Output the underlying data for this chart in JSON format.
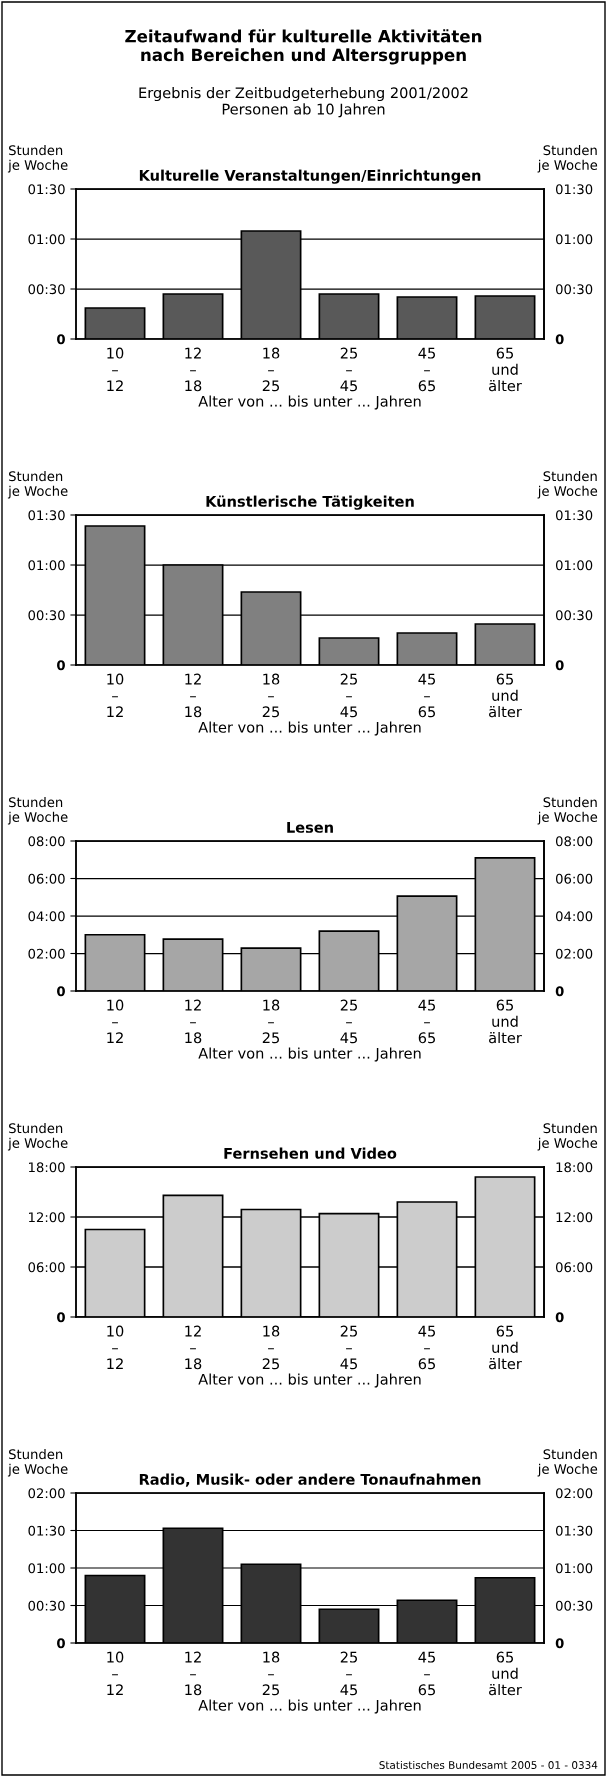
{
  "chart_data": [
    {
      "type": "other",
      "title": "Zeitaufwand für kulturelle Aktivitäten\nnach Bereichen und Altersgruppen",
      "subtitle": "Ergebnis der Zeitbudgeterhebung 2001/2002\nPersonen ab 10 Jahren"
    },
    {
      "type": "bar",
      "title": "Kulturelle Veranstaltungen/Einrichtungen",
      "ylabel": "Stunden\nje Woche",
      "y2label": "Stunden\nje Woche",
      "xlabel": "Alter von ... bis unter ... Jahren",
      "categories": [
        "10\n–\n12",
        "12\n–\n18",
        "18\n–\n25",
        "25\n–\n45",
        "45\n–\n65",
        "65\nund\nälter"
      ],
      "series": [
        {
          "color": "#595959",
          "values": [
            0.31,
            0.45,
            1.08,
            0.45,
            0.42,
            0.43
          ]
        }
      ],
      "ylim": [
        0,
        1.5
      ],
      "yticks": [
        {
          "value": 0,
          "label": "0"
        },
        {
          "value": 0.5,
          "label": "00:30"
        },
        {
          "value": 1,
          "label": "01:00"
        },
        {
          "value": 1.5,
          "label": "01:30"
        }
      ],
      "y2lim": [
        0,
        1.5
      ],
      "y2ticks": [
        {
          "value": 0,
          "label": "0"
        },
        {
          "value": 0.5,
          "label": "00:30"
        },
        {
          "value": 1,
          "label": "01:00"
        },
        {
          "value": 1.5,
          "label": "01:30"
        }
      ],
      "grid": "y",
      "legend": false
    },
    {
      "type": "bar",
      "title": "Künstlerische Tätigkeiten",
      "ylabel": "Stunden\nje Woche",
      "y2label": "Stunden\nje Woche",
      "xlabel": "Alter von ... bis unter ... Jahren",
      "categories": [
        "10\n–\n12",
        "12\n–\n18",
        "18\n–\n25",
        "25\n–\n45",
        "45\n–\n65",
        "65\nund\nälter"
      ],
      "series": [
        {
          "color": "#808080",
          "values": [
            1.39,
            1.0,
            0.73,
            0.27,
            0.32,
            0.41
          ]
        }
      ],
      "ylim": [
        0,
        1.5
      ],
      "yticks": [
        {
          "value": 0,
          "label": "0"
        },
        {
          "value": 0.5,
          "label": "00:30"
        },
        {
          "value": 1,
          "label": "01:00"
        },
        {
          "value": 1.5,
          "label": "01:30"
        }
      ],
      "y2lim": [
        0,
        1.5
      ],
      "y2ticks": [
        {
          "value": 0,
          "label": "0"
        },
        {
          "value": 0.5,
          "label": "00:30"
        },
        {
          "value": 1,
          "label": "01:00"
        },
        {
          "value": 1.5,
          "label": "01:30"
        }
      ],
      "grid": "y",
      "legend": false
    },
    {
      "type": "bar",
      "title": "Lesen",
      "ylabel": "Stunden\nje Woche",
      "y2label": "Stunden\nje Woche",
      "xlabel": "Alter von ... bis unter ... Jahren",
      "categories": [
        "10\n–\n12",
        "12\n–\n18",
        "18\n–\n25",
        "25\n–\n45",
        "45\n–\n65",
        "65\nund\nälter"
      ],
      "series": [
        {
          "color": "#a6a6a6",
          "values": [
            3.0,
            2.77,
            2.29,
            3.19,
            5.06,
            7.1
          ]
        }
      ],
      "ylim": [
        0,
        8
      ],
      "yticks": [
        {
          "value": 0,
          "label": "0"
        },
        {
          "value": 2,
          "label": "02:00"
        },
        {
          "value": 4,
          "label": "04:00"
        },
        {
          "value": 6,
          "label": "06:00"
        },
        {
          "value": 8,
          "label": "08:00"
        }
      ],
      "y2lim": [
        0,
        8
      ],
      "y2ticks": [
        {
          "value": 0,
          "label": "0"
        },
        {
          "value": 2,
          "label": "02:00"
        },
        {
          "value": 4,
          "label": "04:00"
        },
        {
          "value": 6,
          "label": "06:00"
        },
        {
          "value": 8,
          "label": "08:00"
        }
      ],
      "grid": "y",
      "legend": false
    },
    {
      "type": "bar",
      "title": "Fernsehen und Video",
      "ylabel": "Stunden\nje Woche",
      "y2label": "Stunden\nje Woche",
      "xlabel": "Alter von ... bis unter ... Jahren",
      "categories": [
        "10\n–\n12",
        "12\n–\n18",
        "18\n–\n25",
        "25\n–\n45",
        "45\n–\n65",
        "65\nund\nälter"
      ],
      "series": [
        {
          "color": "#cccccc",
          "values": [
            10.5,
            14.6,
            12.9,
            12.4,
            13.8,
            16.8
          ]
        }
      ],
      "ylim": [
        0,
        18
      ],
      "yticks": [
        {
          "value": 0,
          "label": "0"
        },
        {
          "value": 6,
          "label": "06:00"
        },
        {
          "value": 12,
          "label": "12:00"
        },
        {
          "value": 18,
          "label": "18:00"
        }
      ],
      "y2lim": [
        0,
        18
      ],
      "y2ticks": [
        {
          "value": 0,
          "label": "0"
        },
        {
          "value": 6,
          "label": "06:00"
        },
        {
          "value": 12,
          "label": "12:00"
        },
        {
          "value": 18,
          "label": "18:00"
        }
      ],
      "grid": "y",
      "legend": false
    },
    {
      "type": "bar",
      "title": "Radio, Musik- oder andere Tonaufnahmen",
      "ylabel": "Stunden\nje Woche",
      "y2label": "Stunden\nje Woche",
      "xlabel": "Alter von ... bis unter ... Jahren",
      "categories": [
        "10\n–\n12",
        "12\n–\n18",
        "18\n–\n25",
        "25\n–\n45",
        "45\n–\n65",
        "65\nund\nälter"
      ],
      "series": [
        {
          "color": "#333333",
          "values": [
            0.9,
            1.53,
            1.05,
            0.45,
            0.57,
            0.87
          ]
        }
      ],
      "ylim": [
        0,
        2
      ],
      "yticks": [
        {
          "value": 0,
          "label": "0"
        },
        {
          "value": 0.5,
          "label": "00:30"
        },
        {
          "value": 1,
          "label": "01:00"
        },
        {
          "value": 1.5,
          "label": "01:30"
        },
        {
          "value": 2,
          "label": "02:00"
        }
      ],
      "y2lim": [
        0,
        2
      ],
      "y2ticks": [
        {
          "value": 0,
          "label": "0"
        },
        {
          "value": 0.5,
          "label": "00:30"
        },
        {
          "value": 1,
          "label": "01:00"
        },
        {
          "value": 1.5,
          "label": "01:30"
        },
        {
          "value": 2,
          "label": "02:00"
        }
      ],
      "grid": "y",
      "legend": false,
      "annotations": [
        "Statistisches Bundesamt 2005 - 01 - 0334"
      ]
    }
  ]
}
